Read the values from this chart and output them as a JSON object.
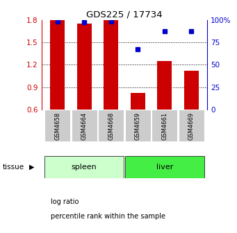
{
  "title": "GDS225 / 17734",
  "samples": [
    "GSM4658",
    "GSM4664",
    "GSM4668",
    "GSM4659",
    "GSM4661",
    "GSM4669"
  ],
  "tissue_groups": [
    {
      "label": "spleen",
      "start": 0,
      "end": 3,
      "color": "#ccffcc"
    },
    {
      "label": "liver",
      "start": 3,
      "end": 6,
      "color": "#44ee44"
    }
  ],
  "log_ratio": [
    1.8,
    1.75,
    1.8,
    0.82,
    1.25,
    1.12
  ],
  "percentile_rank": [
    98,
    97,
    98,
    67,
    87,
    87
  ],
  "bar_color": "#cc0000",
  "dot_color": "#0000cc",
  "ylim": [
    0.6,
    1.8
  ],
  "ylim_right": [
    0,
    100
  ],
  "yticks_left": [
    0.6,
    0.9,
    1.2,
    1.5,
    1.8
  ],
  "yticks_right": [
    0,
    25,
    50,
    75,
    100
  ],
  "ytick_labels_right": [
    "0",
    "25",
    "50",
    "75",
    "100%"
  ],
  "grid_values": [
    0.9,
    1.2,
    1.5
  ],
  "bar_width": 0.55,
  "baseline": 0.6,
  "legend_items": [
    "log ratio",
    "percentile rank within the sample"
  ],
  "legend_colors": [
    "#cc0000",
    "#0000cc"
  ],
  "tissue_label": "tissue",
  "sample_box_color": "#cccccc",
  "background_color": "#ffffff"
}
